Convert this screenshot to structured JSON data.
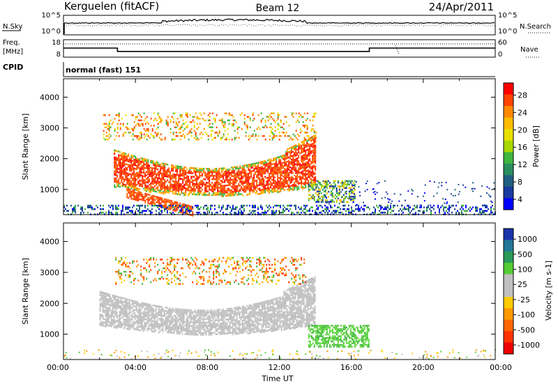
{
  "header": {
    "radar": "Kerguelen (fitACF)",
    "beam": "Beam 12",
    "date": "24/Apr/2011"
  },
  "panels": {
    "noise": {
      "left_label": "N.Sky",
      "right_label": "N.Search",
      "left_ticks": [
        "10^5",
        "10^0"
      ],
      "right_ticks": [
        "10^5",
        "10^0"
      ]
    },
    "freq": {
      "left_label_1": "Freq.",
      "left_label_2": "[MHz]",
      "left_ticks": [
        "18",
        "8"
      ],
      "right_label": "Nave",
      "right_ticks": [
        "60",
        "0"
      ]
    },
    "cpid": {
      "label": "CPID",
      "value": "normal (fast) 151"
    }
  },
  "colorbars": {
    "power": {
      "title": "Power [dB]",
      "ticks": [
        "28",
        "24",
        "20",
        "16",
        "12",
        "8",
        "4"
      ],
      "colors": [
        "#ff0000",
        "#ff4400",
        "#ff8800",
        "#ffbb00",
        "#e8e000",
        "#a8d800",
        "#3fb63f",
        "#2a8f5f",
        "#206080",
        "#1a3aa0",
        "#0000ff"
      ]
    },
    "velocity": {
      "title": "Velocity [m s-1]",
      "ticks": [
        "1000",
        "500",
        "100",
        "25",
        "-25",
        "-100",
        "-500",
        "-1000"
      ],
      "colors": [
        "#1a33aa",
        "#227799",
        "#2a9a5a",
        "#55cc33",
        "#c0c0c0",
        "#c0c0c0",
        "#ffcc00",
        "#ff9900",
        "#ff6600",
        "#ff3300",
        "#ee0000"
      ]
    }
  },
  "chart_data": {
    "type": "heatmap",
    "xlabel": "Time UT",
    "ylabel": "Slant Range [km]",
    "x_ticks": [
      "00:00",
      "04:00",
      "08:00",
      "12:00",
      "16:00",
      "20:00",
      "00:00"
    ],
    "y_ticks": [
      "1000",
      "2000",
      "3000",
      "4000"
    ],
    "xlim": [
      0,
      24
    ],
    "ylim": [
      180,
      4600
    ],
    "freq_segments": [
      {
        "start_h": 0.0,
        "end_h": 3.0,
        "mhz": 13.2
      },
      {
        "start_h": 3.0,
        "end_h": 17.0,
        "mhz": 11.3
      },
      {
        "start_h": 17.0,
        "end_h": 24.0,
        "mhz": 13.2
      }
    ],
    "power_regions": [
      {
        "name": "main arc",
        "t0": 2.8,
        "t1": 14.0,
        "r_top": 2300,
        "r_bottom": 1100,
        "level_db": 26
      },
      {
        "name": "upper patches",
        "t0": 2.2,
        "t1": 14.0,
        "r0": 2600,
        "r1": 3500,
        "level_db": 20
      },
      {
        "name": "descending streak",
        "t0": 3.5,
        "t1": 7.2,
        "r0": 800,
        "r1": 200,
        "level_db": 26
      },
      {
        "name": "late echo",
        "t0": 13.6,
        "t1": 16.2,
        "r0": 600,
        "r1": 1300,
        "level_db": 14
      },
      {
        "name": "near range band",
        "t0": 0.0,
        "t1": 24.0,
        "r0": 200,
        "r1": 500,
        "level_db": 6
      }
    ],
    "velocity_regions": [
      {
        "name": "ground scatter arc",
        "t0": 2.0,
        "t1": 14.0,
        "r_top": 2400,
        "r_bottom": 1300,
        "velocity_ms": 0
      },
      {
        "name": "upper patches",
        "t0": 2.8,
        "t1": 13.5,
        "r0": 2600,
        "r1": 3500,
        "velocity_ms": -200
      },
      {
        "name": "late echo",
        "t0": 13.6,
        "t1": 17.0,
        "r0": 600,
        "r1": 1300,
        "velocity_ms": 80
      }
    ]
  }
}
